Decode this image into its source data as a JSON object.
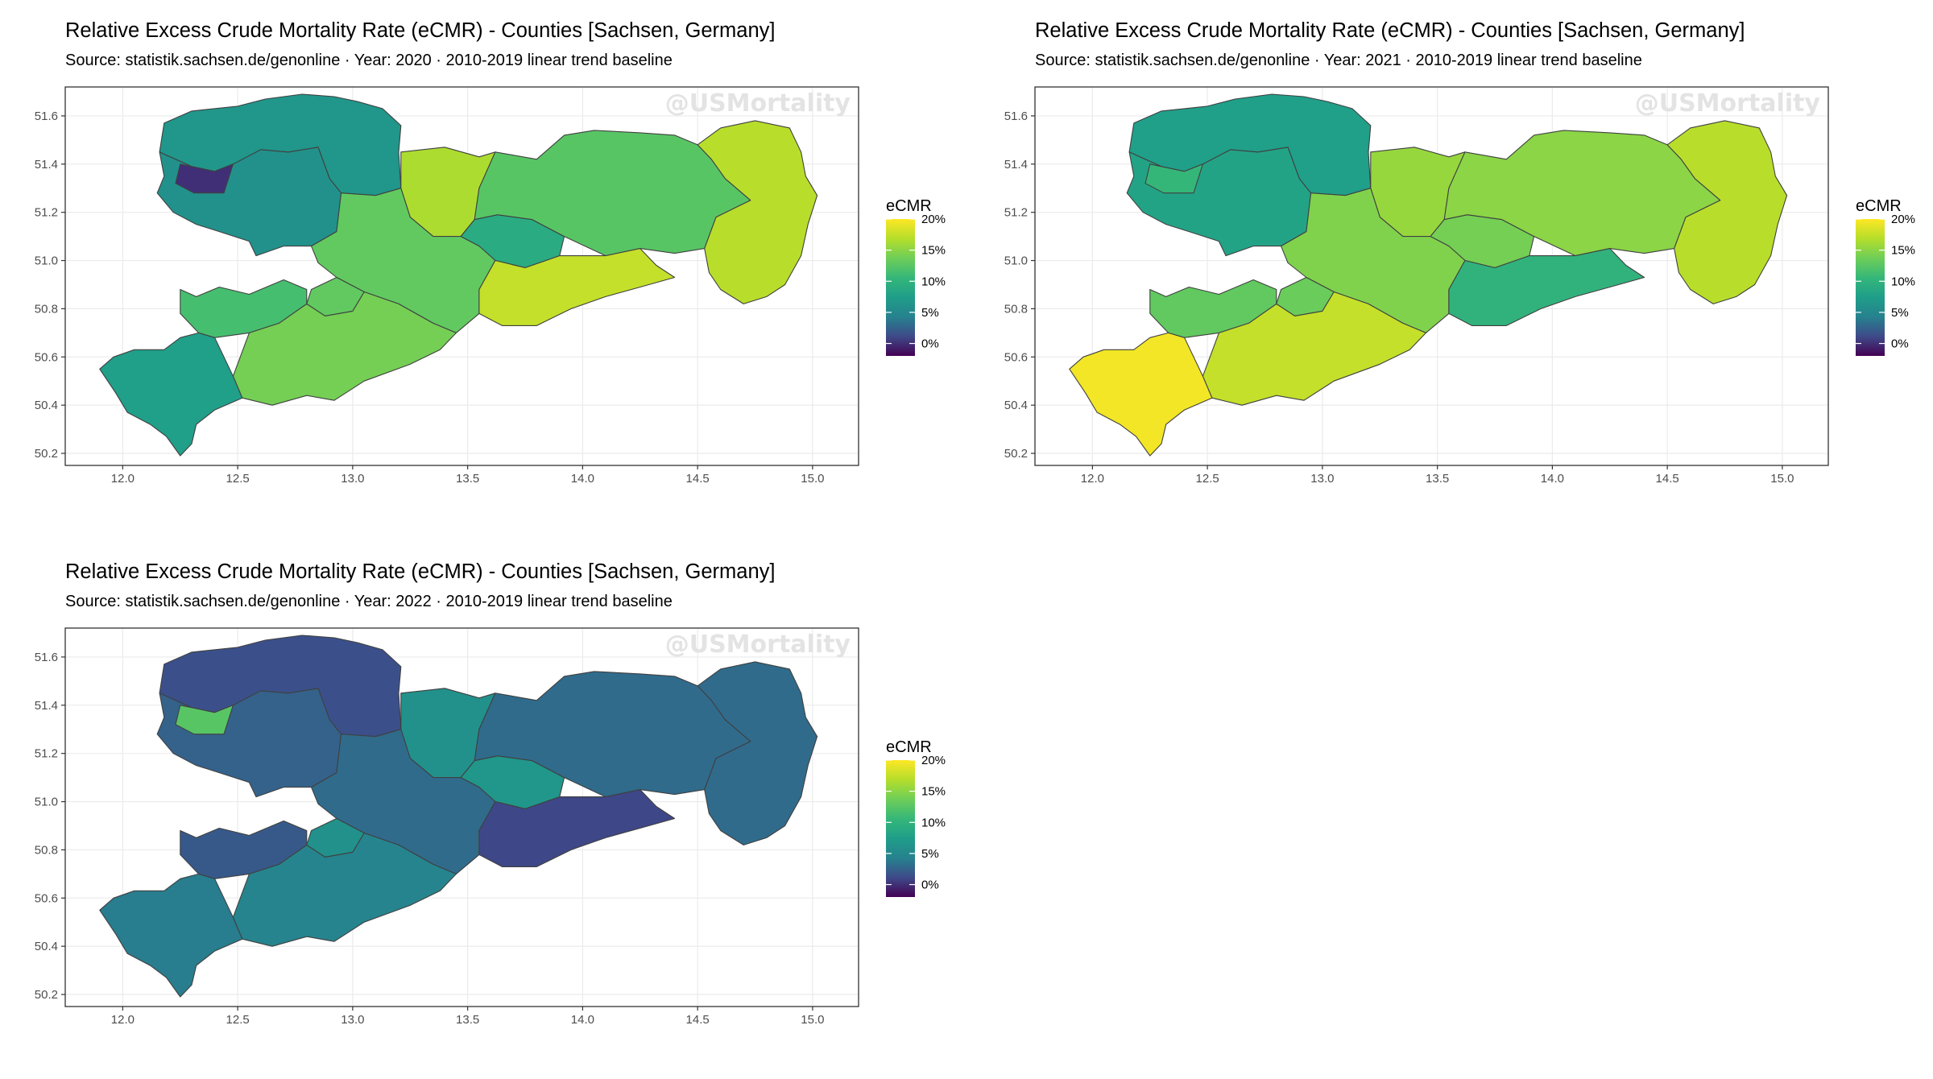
{
  "colors": {
    "scale": [
      "#440154",
      "#3e4a89",
      "#26828e",
      "#1f9e89",
      "#35b779",
      "#6ece58",
      "#b5de2b",
      "#fde725"
    ],
    "panel_border": "#333333",
    "grid_major": "#ebebeb",
    "county_border": "#404040",
    "watermark": "#e3e3e3"
  },
  "chart_data": [
    {
      "type": "choropleth",
      "title": "Relative Excess Crude Mortality Rate (eCMR) - Counties [Sachsen, Germany]",
      "subtitle": "Source: statistik.sachsen.de/genonline · Year: 2020 · 2010-2019 linear trend baseline",
      "watermark": "@USMortality",
      "x_ticks": [
        "12.0",
        "12.5",
        "13.0",
        "13.5",
        "14.0",
        "14.5",
        "15.0"
      ],
      "y_ticks": [
        "51.6",
        "51.4",
        "51.2",
        "51.0",
        "50.8",
        "50.6",
        "50.4",
        "50.2"
      ],
      "xlim": [
        11.75,
        15.2
      ],
      "ylim": [
        50.15,
        51.72
      ],
      "legend": {
        "title": "eCMR",
        "labels": [
          "20%",
          "15%",
          "10%",
          "5%",
          "0%"
        ],
        "range": [
          -2,
          20
        ],
        "placement": "right"
      },
      "regions": [
        {
          "id": "leipzig-land",
          "value": 6
        },
        {
          "id": "nordsachsen",
          "value": 6.5
        },
        {
          "id": "leipzig-stadt",
          "value": 0
        },
        {
          "id": "meissen",
          "value": 16.5
        },
        {
          "id": "dresden",
          "value": 9
        },
        {
          "id": "bautzen",
          "value": 12.5
        },
        {
          "id": "goerlitz",
          "value": 17
        },
        {
          "id": "mittelsachsen",
          "value": 13
        },
        {
          "id": "saechsische-schweiz",
          "value": 17.5
        },
        {
          "id": "chemnitz",
          "value": 13
        },
        {
          "id": "zwickau",
          "value": 11.5
        },
        {
          "id": "erzgebirgskreis",
          "value": 14
        },
        {
          "id": "vogtlandkreis",
          "value": 7.5
        }
      ]
    },
    {
      "type": "choropleth",
      "title": "Relative Excess Crude Mortality Rate (eCMR) - Counties [Sachsen, Germany]",
      "subtitle": "Source: statistik.sachsen.de/genonline · Year: 2021 · 2010-2019 linear trend baseline",
      "watermark": "@USMortality",
      "x_ticks": [
        "12.0",
        "12.5",
        "13.0",
        "13.5",
        "14.0",
        "14.5",
        "15.0"
      ],
      "y_ticks": [
        "51.6",
        "51.4",
        "51.2",
        "51.0",
        "50.8",
        "50.6",
        "50.4",
        "50.2"
      ],
      "xlim": [
        11.75,
        15.2
      ],
      "ylim": [
        50.15,
        51.72
      ],
      "legend": {
        "title": "eCMR",
        "labels": [
          "20%",
          "15%",
          "10%",
          "5%",
          "0%"
        ],
        "range": [
          -2,
          20
        ],
        "placement": "right"
      },
      "regions": [
        {
          "id": "leipzig-land",
          "value": 8
        },
        {
          "id": "nordsachsen",
          "value": 7.5
        },
        {
          "id": "leipzig-stadt",
          "value": 10.5
        },
        {
          "id": "meissen",
          "value": 15.5
        },
        {
          "id": "dresden",
          "value": 14
        },
        {
          "id": "bautzen",
          "value": 15
        },
        {
          "id": "goerlitz",
          "value": 17
        },
        {
          "id": "mittelsachsen",
          "value": 14.5
        },
        {
          "id": "saechsische-schweiz",
          "value": 10
        },
        {
          "id": "chemnitz",
          "value": 13.5
        },
        {
          "id": "zwickau",
          "value": 13
        },
        {
          "id": "erzgebirgskreis",
          "value": 17.5
        },
        {
          "id": "vogtlandkreis",
          "value": 19.5
        }
      ]
    },
    {
      "type": "choropleth",
      "title": "Relative Excess Crude Mortality Rate (eCMR) - Counties [Sachsen, Germany]",
      "subtitle": "Source: statistik.sachsen.de/genonline · Year: 2022 · 2010-2019 linear trend baseline",
      "watermark": "@USMortality",
      "x_ticks": [
        "12.0",
        "12.5",
        "13.0",
        "13.5",
        "14.0",
        "14.5",
        "15.0"
      ],
      "y_ticks": [
        "51.6",
        "51.4",
        "51.2",
        "51.0",
        "50.8",
        "50.6",
        "50.4",
        "50.2"
      ],
      "xlim": [
        11.75,
        15.2
      ],
      "ylim": [
        50.15,
        51.72
      ],
      "legend": {
        "title": "eCMR",
        "labels": [
          "20%",
          "15%",
          "10%",
          "5%",
          "0%"
        ],
        "range": [
          -2,
          20
        ],
        "placement": "right"
      },
      "regions": [
        {
          "id": "leipzig-land",
          "value": 2.5
        },
        {
          "id": "nordsachsen",
          "value": 1.5
        },
        {
          "id": "leipzig-stadt",
          "value": 12.5
        },
        {
          "id": "meissen",
          "value": 6
        },
        {
          "id": "dresden",
          "value": 6.5
        },
        {
          "id": "bautzen",
          "value": 3
        },
        {
          "id": "goerlitz",
          "value": 3
        },
        {
          "id": "mittelsachsen",
          "value": 3
        },
        {
          "id": "saechsische-schweiz",
          "value": 1
        },
        {
          "id": "chemnitz",
          "value": 6
        },
        {
          "id": "zwickau",
          "value": 2
        },
        {
          "id": "erzgebirgskreis",
          "value": 4.5
        },
        {
          "id": "vogtlandkreis",
          "value": 4
        }
      ]
    }
  ]
}
